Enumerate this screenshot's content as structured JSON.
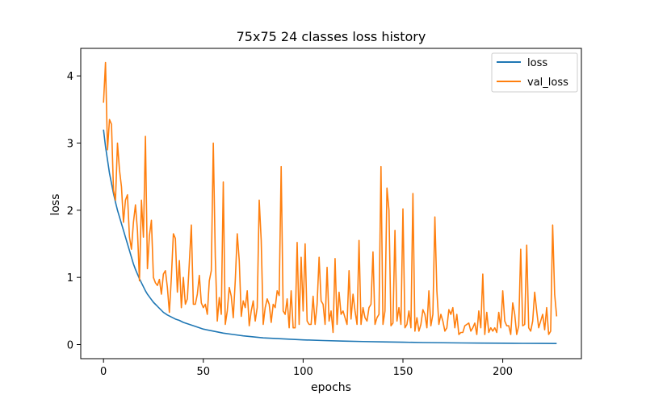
{
  "chart_data": {
    "type": "line",
    "title": "75x75 24 classes loss history",
    "xlabel": "epochs",
    "ylabel": "loss",
    "xlim": [
      -11.4,
      239.4
    ],
    "ylim": [
      -0.21,
      4.41
    ],
    "xticks": [
      0,
      50,
      100,
      150,
      200
    ],
    "yticks": [
      0,
      1,
      2,
      3,
      4
    ],
    "grid": false,
    "legend_position": "top-right",
    "series": [
      {
        "name": "loss",
        "color": "#1f77b4",
        "points": [
          [
            0,
            3.2
          ],
          [
            1,
            2.95
          ],
          [
            2,
            2.75
          ],
          [
            3,
            2.55
          ],
          [
            4,
            2.4
          ],
          [
            5,
            2.25
          ],
          [
            6,
            2.12
          ],
          [
            7,
            2.0
          ],
          [
            8,
            1.9
          ],
          [
            9,
            1.8
          ],
          [
            10,
            1.7
          ],
          [
            11,
            1.6
          ],
          [
            12,
            1.5
          ],
          [
            13,
            1.4
          ],
          [
            14,
            1.3
          ],
          [
            15,
            1.2
          ],
          [
            16,
            1.12
          ],
          [
            17,
            1.05
          ],
          [
            18,
            0.98
          ],
          [
            19,
            0.92
          ],
          [
            20,
            0.86
          ],
          [
            21,
            0.8
          ],
          [
            22,
            0.75
          ],
          [
            23,
            0.71
          ],
          [
            24,
            0.67
          ],
          [
            25,
            0.63
          ],
          [
            26,
            0.6
          ],
          [
            27,
            0.57
          ],
          [
            28,
            0.54
          ],
          [
            29,
            0.51
          ],
          [
            30,
            0.48
          ],
          [
            32,
            0.44
          ],
          [
            34,
            0.41
          ],
          [
            36,
            0.38
          ],
          [
            38,
            0.36
          ],
          [
            40,
            0.33
          ],
          [
            42,
            0.31
          ],
          [
            45,
            0.28
          ],
          [
            48,
            0.25
          ],
          [
            50,
            0.23
          ],
          [
            55,
            0.2
          ],
          [
            60,
            0.17
          ],
          [
            65,
            0.15
          ],
          [
            70,
            0.13
          ],
          [
            75,
            0.115
          ],
          [
            80,
            0.1
          ],
          [
            90,
            0.085
          ],
          [
            100,
            0.07
          ],
          [
            110,
            0.06
          ],
          [
            120,
            0.052
          ],
          [
            130,
            0.045
          ],
          [
            140,
            0.04
          ],
          [
            150,
            0.035
          ],
          [
            160,
            0.03
          ],
          [
            170,
            0.027
          ],
          [
            180,
            0.024
          ],
          [
            190,
            0.022
          ],
          [
            200,
            0.02
          ],
          [
            210,
            0.018
          ],
          [
            220,
            0.017
          ],
          [
            227,
            0.016
          ]
        ]
      },
      {
        "name": "val_loss",
        "color": "#ff7f0e",
        "points": [
          [
            0,
            3.6
          ],
          [
            1,
            4.2
          ],
          [
            2,
            2.9
          ],
          [
            3,
            3.35
          ],
          [
            4,
            3.28
          ],
          [
            5,
            2.3
          ],
          [
            6,
            2.15
          ],
          [
            7,
            3.0
          ],
          [
            8,
            2.6
          ],
          [
            9,
            2.35
          ],
          [
            10,
            1.82
          ],
          [
            11,
            2.15
          ],
          [
            12,
            2.23
          ],
          [
            13,
            1.6
          ],
          [
            14,
            1.42
          ],
          [
            15,
            1.82
          ],
          [
            16,
            2.08
          ],
          [
            17,
            1.7
          ],
          [
            18,
            0.95
          ],
          [
            19,
            2.15
          ],
          [
            20,
            1.6
          ],
          [
            21,
            3.1
          ],
          [
            22,
            1.13
          ],
          [
            23,
            1.62
          ],
          [
            24,
            1.85
          ],
          [
            25,
            1.0
          ],
          [
            26,
            0.92
          ],
          [
            27,
            0.88
          ],
          [
            28,
            0.97
          ],
          [
            29,
            0.75
          ],
          [
            30,
            1.05
          ],
          [
            31,
            1.1
          ],
          [
            32,
            0.85
          ],
          [
            33,
            0.48
          ],
          [
            34,
            1.0
          ],
          [
            35,
            1.65
          ],
          [
            36,
            1.58
          ],
          [
            37,
            0.78
          ],
          [
            38,
            1.25
          ],
          [
            39,
            0.55
          ],
          [
            40,
            1.0
          ],
          [
            41,
            0.6
          ],
          [
            42,
            0.68
          ],
          [
            43,
            1.22
          ],
          [
            44,
            1.78
          ],
          [
            45,
            0.6
          ],
          [
            46,
            0.6
          ],
          [
            47,
            0.75
          ],
          [
            48,
            1.03
          ],
          [
            49,
            0.62
          ],
          [
            50,
            0.55
          ],
          [
            51,
            0.6
          ],
          [
            52,
            0.45
          ],
          [
            53,
            0.95
          ],
          [
            54,
            1.1
          ],
          [
            55,
            3.0
          ],
          [
            56,
            1.3
          ],
          [
            57,
            0.35
          ],
          [
            58,
            0.7
          ],
          [
            59,
            0.45
          ],
          [
            60,
            2.42
          ],
          [
            61,
            0.3
          ],
          [
            62,
            0.5
          ],
          [
            63,
            0.85
          ],
          [
            64,
            0.72
          ],
          [
            65,
            0.4
          ],
          [
            66,
            0.95
          ],
          [
            67,
            1.65
          ],
          [
            68,
            1.25
          ],
          [
            69,
            0.42
          ],
          [
            70,
            0.65
          ],
          [
            71,
            0.55
          ],
          [
            72,
            0.8
          ],
          [
            73,
            0.28
          ],
          [
            74,
            0.5
          ],
          [
            75,
            0.65
          ],
          [
            76,
            0.35
          ],
          [
            77,
            0.55
          ],
          [
            78,
            2.15
          ],
          [
            79,
            1.55
          ],
          [
            80,
            0.3
          ],
          [
            81,
            0.55
          ],
          [
            82,
            0.68
          ],
          [
            83,
            0.6
          ],
          [
            84,
            0.33
          ],
          [
            85,
            0.6
          ],
          [
            86,
            0.55
          ],
          [
            87,
            0.8
          ],
          [
            88,
            0.73
          ],
          [
            89,
            2.65
          ],
          [
            90,
            0.5
          ],
          [
            91,
            0.45
          ],
          [
            92,
            0.68
          ],
          [
            93,
            0.25
          ],
          [
            94,
            0.8
          ],
          [
            95,
            0.25
          ],
          [
            96,
            0.25
          ],
          [
            97,
            1.52
          ],
          [
            98,
            0.3
          ],
          [
            99,
            1.3
          ],
          [
            100,
            0.5
          ],
          [
            101,
            1.5
          ],
          [
            102,
            0.35
          ],
          [
            103,
            0.3
          ],
          [
            104,
            0.3
          ],
          [
            105,
            0.72
          ],
          [
            106,
            0.3
          ],
          [
            107,
            0.6
          ],
          [
            108,
            1.3
          ],
          [
            109,
            0.65
          ],
          [
            110,
            0.6
          ],
          [
            111,
            0.3
          ],
          [
            112,
            1.15
          ],
          [
            113,
            0.35
          ],
          [
            114,
            0.5
          ],
          [
            115,
            0.18
          ],
          [
            116,
            1.28
          ],
          [
            117,
            0.3
          ],
          [
            118,
            0.78
          ],
          [
            119,
            0.45
          ],
          [
            120,
            0.5
          ],
          [
            121,
            0.4
          ],
          [
            122,
            0.3
          ],
          [
            123,
            1.1
          ],
          [
            124,
            0.38
          ],
          [
            125,
            0.75
          ],
          [
            126,
            0.5
          ],
          [
            127,
            0.3
          ],
          [
            128,
            1.55
          ],
          [
            129,
            0.3
          ],
          [
            130,
            0.55
          ],
          [
            131,
            0.4
          ],
          [
            132,
            0.35
          ],
          [
            133,
            0.55
          ],
          [
            134,
            0.6
          ],
          [
            135,
            1.38
          ],
          [
            136,
            0.3
          ],
          [
            137,
            0.4
          ],
          [
            138,
            0.45
          ],
          [
            139,
            2.65
          ],
          [
            140,
            0.3
          ],
          [
            141,
            0.5
          ],
          [
            142,
            2.33
          ],
          [
            143,
            2.0
          ],
          [
            144,
            0.28
          ],
          [
            145,
            0.32
          ],
          [
            146,
            1.7
          ],
          [
            147,
            0.35
          ],
          [
            148,
            0.55
          ],
          [
            149,
            0.3
          ],
          [
            150,
            2.02
          ],
          [
            151,
            0.25
          ],
          [
            152,
            0.3
          ],
          [
            153,
            0.5
          ],
          [
            154,
            0.25
          ],
          [
            155,
            2.25
          ],
          [
            156,
            0.2
          ],
          [
            157,
            0.4
          ],
          [
            158,
            0.2
          ],
          [
            159,
            0.3
          ],
          [
            160,
            0.52
          ],
          [
            161,
            0.45
          ],
          [
            162,
            0.25
          ],
          [
            163,
            0.8
          ],
          [
            164,
            0.28
          ],
          [
            165,
            0.45
          ],
          [
            166,
            1.9
          ],
          [
            167,
            0.8
          ],
          [
            168,
            0.3
          ],
          [
            169,
            0.45
          ],
          [
            170,
            0.35
          ],
          [
            171,
            0.2
          ],
          [
            172,
            0.25
          ],
          [
            173,
            0.52
          ],
          [
            174,
            0.45
          ],
          [
            175,
            0.55
          ],
          [
            176,
            0.25
          ],
          [
            177,
            0.45
          ],
          [
            178,
            0.15
          ],
          [
            179,
            0.18
          ],
          [
            180,
            0.18
          ],
          [
            181,
            0.28
          ],
          [
            182,
            0.3
          ],
          [
            183,
            0.32
          ],
          [
            184,
            0.2
          ],
          [
            185,
            0.25
          ],
          [
            186,
            0.32
          ],
          [
            187,
            0.15
          ],
          [
            188,
            0.5
          ],
          [
            189,
            0.25
          ],
          [
            190,
            1.05
          ],
          [
            191,
            0.15
          ],
          [
            192,
            0.48
          ],
          [
            193,
            0.18
          ],
          [
            194,
            0.25
          ],
          [
            195,
            0.2
          ],
          [
            196,
            0.25
          ],
          [
            197,
            0.18
          ],
          [
            198,
            0.48
          ],
          [
            199,
            0.25
          ],
          [
            200,
            0.8
          ],
          [
            201,
            0.35
          ],
          [
            202,
            0.28
          ],
          [
            203,
            0.28
          ],
          [
            204,
            0.15
          ],
          [
            205,
            0.62
          ],
          [
            206,
            0.45
          ],
          [
            207,
            0.15
          ],
          [
            208,
            0.28
          ],
          [
            209,
            1.42
          ],
          [
            210,
            0.28
          ],
          [
            211,
            0.3
          ],
          [
            212,
            1.48
          ],
          [
            213,
            0.25
          ],
          [
            214,
            0.2
          ],
          [
            215,
            0.35
          ],
          [
            216,
            0.78
          ],
          [
            217,
            0.5
          ],
          [
            218,
            0.25
          ],
          [
            219,
            0.35
          ],
          [
            220,
            0.45
          ],
          [
            221,
            0.22
          ],
          [
            222,
            0.55
          ],
          [
            223,
            0.15
          ],
          [
            224,
            0.2
          ],
          [
            225,
            1.78
          ],
          [
            226,
            0.75
          ],
          [
            227,
            0.42
          ]
        ]
      }
    ]
  }
}
